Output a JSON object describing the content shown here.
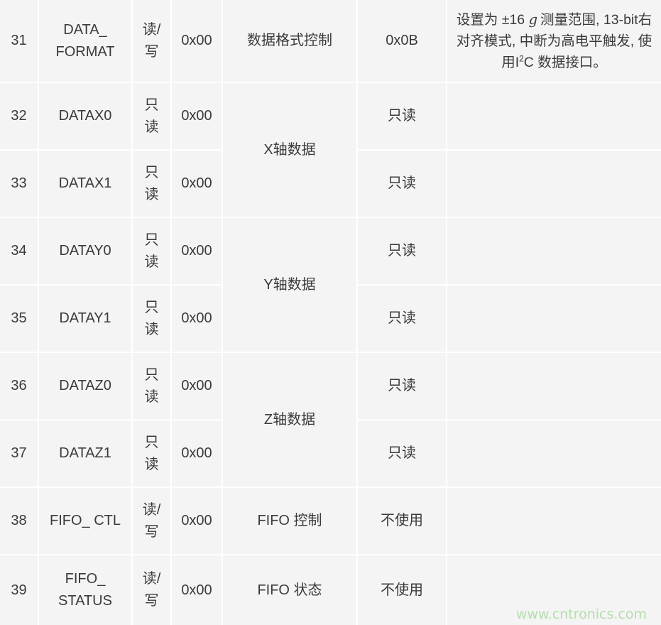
{
  "rows": [
    {
      "addr": "31",
      "name": "DATA_ FORMAT",
      "access": "读/写",
      "reset": "0x00",
      "function": "数据格式控制",
      "setting": "0x0B",
      "desc_parts": [
        "设置为 ±16 ",
        "g",
        "测量范围, 13-bit右对齐模式, 中断为高电平触发, 使用I",
        "2",
        "C 数据接口。"
      ]
    },
    {
      "addr": "32",
      "name": "DATAX0",
      "access": "只读",
      "reset": "0x00",
      "function": "X轴数据",
      "setting": "只读"
    },
    {
      "addr": "33",
      "name": "DATAX1",
      "access": "只读",
      "reset": "0x00",
      "setting": "只读"
    },
    {
      "addr": "34",
      "name": "DATAY0",
      "access": "只读",
      "reset": "0x00",
      "function": "Y轴数据",
      "setting": "只读"
    },
    {
      "addr": "35",
      "name": "DATAY1",
      "access": "只读",
      "reset": "0x00",
      "setting": "只读"
    },
    {
      "addr": "36",
      "name": "DATAZ0",
      "access": "只读",
      "reset": "0x00",
      "function": "Z轴数据",
      "setting": "只读"
    },
    {
      "addr": "37",
      "name": "DATAZ1",
      "access": "只读",
      "reset": "0x00",
      "setting": "只读"
    },
    {
      "addr": "38",
      "name": "FIFO_ CTL",
      "access": "读/写",
      "reset": "0x00",
      "function": "FIFO 控制",
      "setting": "不使用"
    },
    {
      "addr": "39",
      "name": "FIFO_ STATUS",
      "access": "读/写",
      "reset": "0x00",
      "function": "FIFO 状态",
      "setting": "不使用"
    }
  ],
  "watermark": "www.cntronics.com",
  "colors": {
    "cell_bg": "#f4f4f4",
    "text": "#3a3a3a",
    "watermark": "#b5dcae"
  }
}
